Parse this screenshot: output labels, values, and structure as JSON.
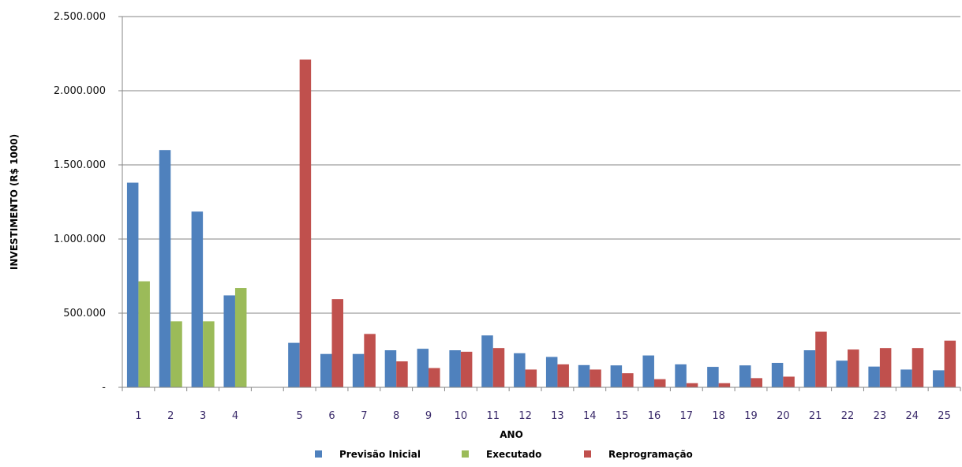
{
  "chart_data": {
    "type": "bar",
    "title": "",
    "xlabel": "ANO",
    "ylabel": "INVESTIMENTO (R$ 1000)",
    "ylim": [
      0,
      2500000
    ],
    "y_ticks": [
      {
        "value": 0,
        "label": "-"
      },
      {
        "value": 500000,
        "label": "500.000"
      },
      {
        "value": 1000000,
        "label": "1.000.000"
      },
      {
        "value": 1500000,
        "label": "1.500.000"
      },
      {
        "value": 2000000,
        "label": "2.000.000"
      },
      {
        "value": 2500000,
        "label": "2.500.000"
      }
    ],
    "grid": true,
    "legend_position": "bottom",
    "categories": [
      "1",
      "2",
      "3",
      "4",
      "",
      "5",
      "6",
      "7",
      "8",
      "9",
      "10",
      "11",
      "12",
      "13",
      "14",
      "15",
      "16",
      "17",
      "18",
      "19",
      "20",
      "21",
      "22",
      "23",
      "24",
      "25"
    ],
    "series": [
      {
        "name": "Previsão Inicial",
        "color": "#4f81bd",
        "values": [
          1380000,
          1600000,
          1185000,
          620000,
          null,
          300000,
          225000,
          225000,
          250000,
          260000,
          250000,
          350000,
          230000,
          205000,
          150000,
          148000,
          215000,
          155000,
          138000,
          148000,
          165000,
          250000,
          180000,
          140000,
          120000,
          115000
        ]
      },
      {
        "name": "Executado",
        "color": "#9bbb59",
        "values": [
          715000,
          445000,
          445000,
          670000,
          null,
          null,
          null,
          null,
          null,
          null,
          null,
          null,
          null,
          null,
          null,
          null,
          null,
          null,
          null,
          null,
          null,
          null,
          null,
          null,
          null,
          null
        ]
      },
      {
        "name": "Reprogramação",
        "color": "#c0504d",
        "values": [
          null,
          null,
          null,
          null,
          null,
          2210000,
          595000,
          360000,
          175000,
          130000,
          240000,
          265000,
          120000,
          155000,
          120000,
          95000,
          55000,
          28000,
          28000,
          62000,
          72000,
          375000,
          255000,
          265000,
          265000,
          315000
        ]
      }
    ]
  }
}
